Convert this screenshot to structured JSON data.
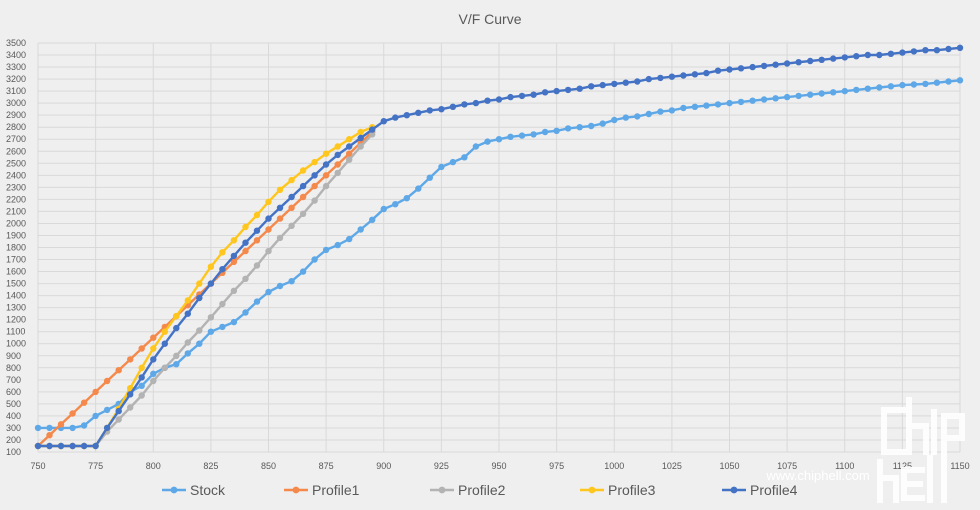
{
  "chart_data": {
    "type": "line",
    "title": "V/F Curve",
    "xlabel": "",
    "ylabel": "",
    "xlim": [
      750,
      1150
    ],
    "ylim": [
      100,
      3500
    ],
    "x_ticks": [
      750,
      775,
      800,
      825,
      850,
      875,
      900,
      925,
      950,
      975,
      1000,
      1025,
      1050,
      1075,
      1100,
      1125,
      1150
    ],
    "y_ticks": [
      100,
      200,
      300,
      400,
      500,
      600,
      700,
      800,
      900,
      1000,
      1100,
      1200,
      1300,
      1400,
      1500,
      1600,
      1700,
      1800,
      1900,
      2000,
      2100,
      2200,
      2300,
      2400,
      2500,
      2600,
      2700,
      2800,
      2900,
      3000,
      3100,
      3200,
      3300,
      3400,
      3500
    ],
    "grid": true,
    "legend": "bottom",
    "series": [
      {
        "name": "Stock",
        "color": "#5ea8e8",
        "x": [
          750,
          755,
          760,
          765,
          770,
          775,
          780,
          785,
          790,
          795,
          800,
          805,
          810,
          815,
          820,
          825,
          830,
          835,
          840,
          845,
          850,
          855,
          860,
          865,
          870,
          875,
          880,
          885,
          890,
          895,
          900,
          905,
          910,
          915,
          920,
          925,
          930,
          935,
          940,
          945,
          950,
          955,
          960,
          965,
          970,
          975,
          980,
          985,
          990,
          995,
          1000,
          1005,
          1010,
          1015,
          1020,
          1025,
          1030,
          1035,
          1040,
          1045,
          1050,
          1055,
          1060,
          1065,
          1070,
          1075,
          1080,
          1085,
          1090,
          1095,
          1100,
          1105,
          1110,
          1115,
          1120,
          1125,
          1130,
          1135,
          1140,
          1145,
          1150
        ],
        "y": [
          300,
          300,
          300,
          300,
          320,
          400,
          450,
          500,
          600,
          650,
          750,
          800,
          830,
          920,
          1000,
          1100,
          1140,
          1180,
          1260,
          1350,
          1430,
          1480,
          1520,
          1600,
          1700,
          1780,
          1820,
          1870,
          1950,
          2030,
          2120,
          2160,
          2210,
          2290,
          2380,
          2470,
          2510,
          2550,
          2640,
          2680,
          2700,
          2720,
          2730,
          2740,
          2760,
          2770,
          2790,
          2800,
          2810,
          2830,
          2860,
          2880,
          2890,
          2910,
          2930,
          2940,
          2960,
          2970,
          2980,
          2990,
          3000,
          3010,
          3020,
          3030,
          3040,
          3050,
          3060,
          3070,
          3080,
          3090,
          3100,
          3110,
          3120,
          3130,
          3140,
          3150,
          3155,
          3160,
          3170,
          3180,
          3190
        ]
      },
      {
        "name": "Profile1",
        "color": "#f4894b",
        "x": [
          750,
          755,
          760,
          765,
          770,
          775,
          780,
          785,
          790,
          795,
          800,
          805,
          810,
          815,
          820,
          825,
          830,
          835,
          840,
          845,
          850,
          855,
          860,
          865,
          870,
          875,
          880,
          885,
          890,
          895
        ],
        "y": [
          150,
          240,
          330,
          420,
          510,
          600,
          690,
          780,
          870,
          960,
          1050,
          1140,
          1230,
          1320,
          1410,
          1500,
          1590,
          1680,
          1770,
          1860,
          1950,
          2040,
          2130,
          2220,
          2310,
          2400,
          2490,
          2580,
          2670,
          2760
        ]
      },
      {
        "name": "Profile2",
        "color": "#b3b3b3",
        "x": [
          750,
          755,
          760,
          765,
          770,
          775,
          780,
          785,
          790,
          795,
          800,
          805,
          810,
          815,
          820,
          825,
          830,
          835,
          840,
          845,
          850,
          855,
          860,
          865,
          870,
          875,
          880,
          885,
          890,
          895
        ],
        "y": [
          150,
          150,
          150,
          150,
          150,
          150,
          270,
          370,
          470,
          570,
          690,
          800,
          900,
          1010,
          1110,
          1220,
          1330,
          1440,
          1540,
          1650,
          1770,
          1880,
          1980,
          2080,
          2190,
          2310,
          2420,
          2530,
          2640,
          2740
        ]
      },
      {
        "name": "Profile3",
        "color": "#ffc61e",
        "x": [
          750,
          755,
          760,
          765,
          770,
          775,
          780,
          785,
          790,
          795,
          800,
          805,
          810,
          815,
          820,
          825,
          830,
          835,
          840,
          845,
          850,
          855,
          860,
          865,
          870,
          875,
          880,
          885,
          890,
          895
        ],
        "y": [
          150,
          150,
          150,
          150,
          150,
          150,
          300,
          460,
          630,
          800,
          960,
          1100,
          1230,
          1360,
          1500,
          1640,
          1760,
          1860,
          1970,
          2070,
          2180,
          2280,
          2360,
          2440,
          2510,
          2580,
          2640,
          2700,
          2760,
          2800
        ]
      },
      {
        "name": "Profile4",
        "color": "#4472c4",
        "x": [
          750,
          755,
          760,
          765,
          770,
          775,
          780,
          785,
          790,
          795,
          800,
          805,
          810,
          815,
          820,
          825,
          830,
          835,
          840,
          845,
          850,
          855,
          860,
          865,
          870,
          875,
          880,
          885,
          890,
          895,
          900,
          905,
          910,
          915,
          920,
          925,
          930,
          935,
          940,
          945,
          950,
          955,
          960,
          965,
          970,
          975,
          980,
          985,
          990,
          995,
          1000,
          1005,
          1010,
          1015,
          1020,
          1025,
          1030,
          1035,
          1040,
          1045,
          1050,
          1055,
          1060,
          1065,
          1070,
          1075,
          1080,
          1085,
          1090,
          1095,
          1100,
          1105,
          1110,
          1115,
          1120,
          1125,
          1130,
          1135,
          1140,
          1145,
          1150
        ],
        "y": [
          150,
          150,
          150,
          150,
          150,
          150,
          300,
          440,
          580,
          720,
          870,
          1000,
          1130,
          1250,
          1380,
          1500,
          1620,
          1730,
          1840,
          1940,
          2040,
          2130,
          2220,
          2310,
          2400,
          2490,
          2570,
          2640,
          2710,
          2780,
          2850,
          2880,
          2900,
          2920,
          2940,
          2950,
          2970,
          2990,
          3000,
          3020,
          3030,
          3050,
          3060,
          3070,
          3090,
          3100,
          3110,
          3120,
          3140,
          3150,
          3160,
          3170,
          3180,
          3200,
          3210,
          3220,
          3230,
          3240,
          3250,
          3270,
          3280,
          3290,
          3300,
          3310,
          3320,
          3330,
          3340,
          3350,
          3360,
          3370,
          3380,
          3390,
          3400,
          3400,
          3410,
          3420,
          3430,
          3440,
          3440,
          3450,
          3460
        ]
      }
    ]
  },
  "watermark": {
    "text": "www.chiphell.com",
    "logo": "chip hell"
  }
}
